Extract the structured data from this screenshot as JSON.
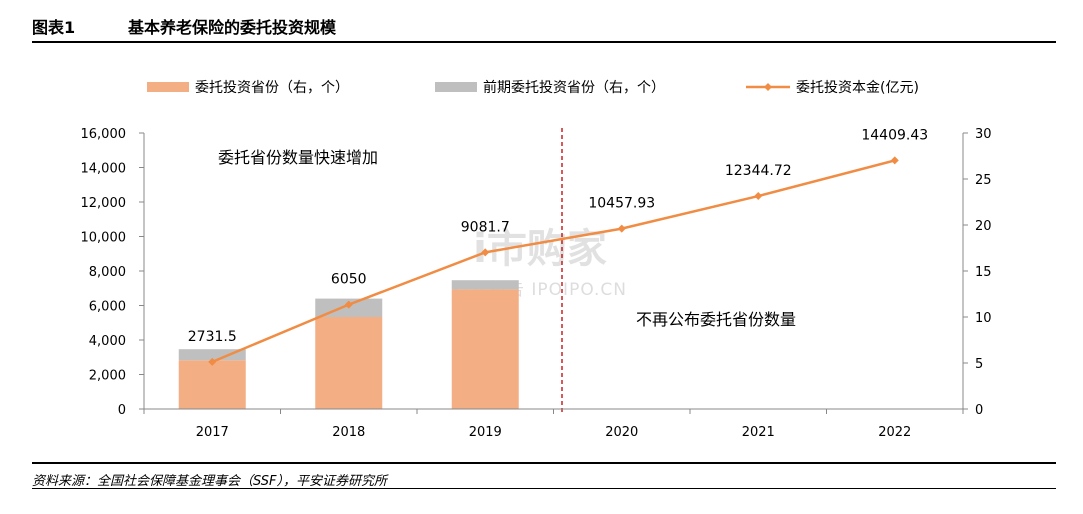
{
  "header": {
    "figure_no": "图表1",
    "title": "基本养老保险的委托投资规模"
  },
  "source": "资料来源：全国社会保障基金理事会（SSF），平安证券研究所",
  "watermark": {
    "line1": "i市购家",
    "line2": "行业报告 IPOIPO.CN"
  },
  "chart_data": {
    "type": "bar+line",
    "categories": [
      "2017",
      "2018",
      "2019",
      "2020",
      "2021",
      "2022"
    ],
    "series": [
      {
        "name": "委托投资省份（右，个）",
        "kind": "bar",
        "axis": "right",
        "color": "#F4AE84",
        "values": [
          5.3,
          10.0,
          13.0,
          null,
          null,
          null
        ]
      },
      {
        "name": "前期委托投资省份（右，个）",
        "kind": "bar",
        "axis": "right",
        "color": "#BFBFBF",
        "values": [
          1.2,
          2.0,
          1.0,
          null,
          null,
          null
        ]
      },
      {
        "name": "委托投资本金(亿元)",
        "kind": "line",
        "axis": "left",
        "color": "#F08C43",
        "values": [
          2731.5,
          6050,
          9081.7,
          10457.93,
          12344.72,
          14409.43
        ],
        "labels": [
          "2731.5",
          "6050",
          "9081.7",
          "10457.93",
          "12344.72",
          "14409.43"
        ]
      }
    ],
    "y_left": {
      "min": 0,
      "max": 16000,
      "ticks": [
        "0",
        "2,000",
        "4,000",
        "6,000",
        "8,000",
        "10,000",
        "12,000",
        "14,000",
        "16,000"
      ]
    },
    "y_right": {
      "min": 0,
      "max": 30,
      "ticks": [
        "0",
        "5",
        "10",
        "15",
        "20",
        "25",
        "30"
      ]
    },
    "annotations": [
      "委托省份数量快速增加",
      "不再公布委托省份数量"
    ],
    "legend_position": "top",
    "grid": false
  }
}
